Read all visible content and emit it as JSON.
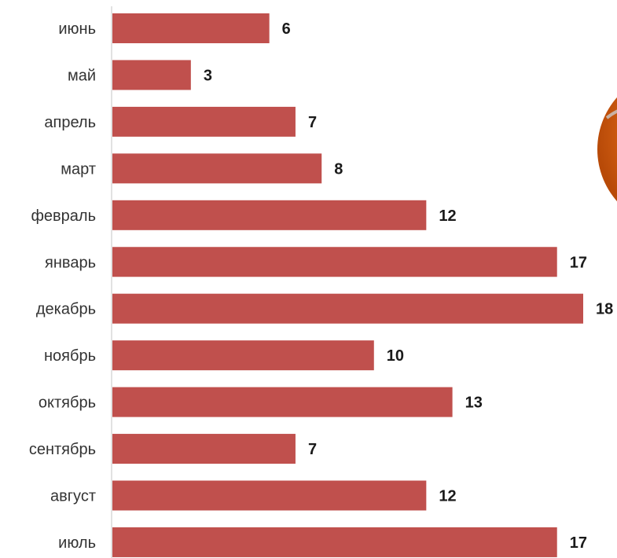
{
  "chart_data": {
    "type": "bar",
    "orientation": "horizontal",
    "categories": [
      "июнь",
      "май",
      "апрель",
      "март",
      "февраль",
      "январь",
      "декабрь",
      "ноябрь",
      "октябрь",
      "сентябрь",
      "август",
      "июль"
    ],
    "values": [
      6,
      3,
      7,
      8,
      12,
      17,
      18,
      10,
      13,
      7,
      12,
      17
    ],
    "title": "",
    "xlabel": "",
    "ylabel": "",
    "xlim": [
      0,
      18
    ],
    "grid": false,
    "legend": "none",
    "data_labels": true
  },
  "colors": {
    "bar": "#c0504d",
    "axis": "#d9d9d9",
    "decoration_orange": "#e07020"
  }
}
